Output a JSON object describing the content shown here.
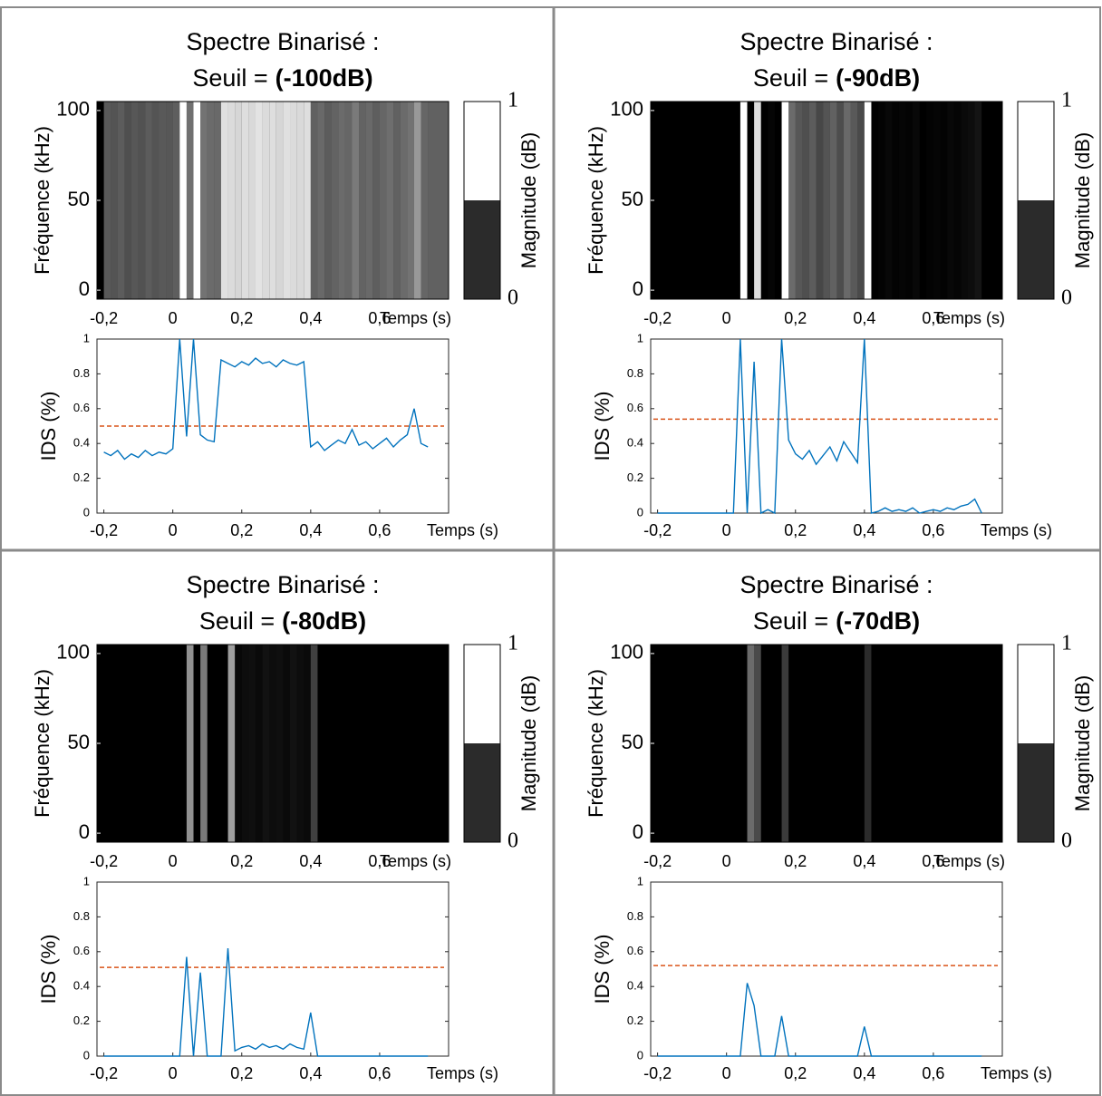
{
  "chart_data": [
    {
      "type": "binarized_spectrum",
      "title": "Spectre Binarisé :",
      "subtitle": "Seuil =",
      "threshold_label": "(-100dB)",
      "xlabel": "Temps (s)",
      "xlim": [
        -0.22,
        0.8
      ],
      "xticks": [
        {
          "value": -0.2,
          "label": "-0,2"
        },
        0,
        {
          "value": 0.2,
          "label": "0,2"
        },
        {
          "value": 0.4,
          "label": "0,4"
        },
        {
          "value": 0.6,
          "label": "0,6"
        }
      ],
      "spectrogram": {
        "ylabel": "Fréquence (kHz)",
        "ylim": [
          -5,
          105
        ],
        "yticks": [
          0,
          50,
          100
        ],
        "colorbar_label": "Magnitude (dB)",
        "colorbar_ticks": [
          0,
          1
        ]
      },
      "ids": {
        "ylabel": "IDS  (%)",
        "ylim": [
          0,
          1
        ],
        "yticks": [
          0,
          {
            "value": 0.2,
            "label": "0.2"
          },
          {
            "value": 0.4,
            "label": "0.4"
          },
          {
            "value": 0.6,
            "label": "0.6"
          },
          {
            "value": 0.8,
            "label": "0.8"
          },
          1
        ],
        "color": "#0072bd",
        "threshold": 0.5,
        "threshold_color": "#d95319"
      },
      "x": [
        -0.2,
        -0.18,
        -0.16,
        -0.14,
        -0.12,
        -0.1,
        -0.08,
        -0.06,
        -0.04,
        -0.02,
        0,
        0.02,
        0.04,
        0.06,
        0.08,
        0.1,
        0.12,
        0.14,
        0.16,
        0.18,
        0.2,
        0.22,
        0.24,
        0.26,
        0.28,
        0.3,
        0.32,
        0.34,
        0.36,
        0.38,
        0.4,
        0.42,
        0.44,
        0.46,
        0.48,
        0.5,
        0.52,
        0.54,
        0.56,
        0.58,
        0.6,
        0.62,
        0.64,
        0.66,
        0.68,
        0.7,
        0.72,
        0.74
      ],
      "values": [
        0.35,
        0.33,
        0.36,
        0.31,
        0.34,
        0.32,
        0.36,
        0.33,
        0.35,
        0.34,
        0.37,
        1.0,
        0.44,
        1.0,
        0.45,
        0.42,
        0.41,
        0.88,
        0.86,
        0.84,
        0.87,
        0.85,
        0.89,
        0.86,
        0.87,
        0.84,
        0.88,
        0.86,
        0.85,
        0.87,
        0.38,
        0.41,
        0.36,
        0.39,
        0.42,
        0.4,
        0.48,
        0.39,
        0.41,
        0.37,
        0.4,
        0.43,
        0.38,
        0.42,
        0.45,
        0.6,
        0.4,
        0.38
      ]
    },
    {
      "type": "binarized_spectrum",
      "title": "Spectre Binarisé :",
      "subtitle": "Seuil =",
      "threshold_label": "(-90dB)",
      "xlabel": "Temps (s)",
      "xlim": [
        -0.22,
        0.8
      ],
      "xticks": [
        {
          "value": -0.2,
          "label": "-0,2"
        },
        0,
        {
          "value": 0.2,
          "label": "0,2"
        },
        {
          "value": 0.4,
          "label": "0,4"
        },
        {
          "value": 0.6,
          "label": "0,6"
        }
      ],
      "spectrogram": {
        "ylabel": "Fréquence (kHz)",
        "ylim": [
          -5,
          105
        ],
        "yticks": [
          0,
          50,
          100
        ],
        "colorbar_label": "Magnitude (dB)",
        "colorbar_ticks": [
          0,
          1
        ]
      },
      "ids": {
        "ylabel": "IDS  (%)",
        "ylim": [
          0,
          1
        ],
        "yticks": [
          0,
          {
            "value": 0.2,
            "label": "0.2"
          },
          {
            "value": 0.4,
            "label": "0.4"
          },
          {
            "value": 0.6,
            "label": "0.6"
          },
          {
            "value": 0.8,
            "label": "0.8"
          },
          1
        ],
        "color": "#0072bd",
        "threshold": 0.54,
        "threshold_color": "#d95319"
      },
      "x": [
        -0.2,
        -0.18,
        -0.16,
        -0.14,
        -0.12,
        -0.1,
        -0.08,
        -0.06,
        -0.04,
        -0.02,
        0,
        0.02,
        0.04,
        0.06,
        0.08,
        0.1,
        0.12,
        0.14,
        0.16,
        0.18,
        0.2,
        0.22,
        0.24,
        0.26,
        0.28,
        0.3,
        0.32,
        0.34,
        0.36,
        0.38,
        0.4,
        0.42,
        0.44,
        0.46,
        0.48,
        0.5,
        0.52,
        0.54,
        0.56,
        0.58,
        0.6,
        0.62,
        0.64,
        0.66,
        0.68,
        0.7,
        0.72,
        0.74
      ],
      "values": [
        0,
        0,
        0,
        0,
        0,
        0,
        0,
        0,
        0,
        0,
        0,
        0,
        1.0,
        0,
        0.87,
        0,
        0.02,
        0,
        1.0,
        0.42,
        0.34,
        0.31,
        0.36,
        0.28,
        0.33,
        0.38,
        0.3,
        0.41,
        0.35,
        0.29,
        1.0,
        0,
        0.01,
        0.03,
        0.01,
        0.02,
        0.01,
        0.03,
        0,
        0.01,
        0.02,
        0.01,
        0.03,
        0.02,
        0.04,
        0.05,
        0.08,
        0
      ]
    },
    {
      "type": "binarized_spectrum",
      "title": "Spectre Binarisé :",
      "subtitle": "Seuil =",
      "threshold_label": "(-80dB)",
      "xlabel": "Temps (s)",
      "xlim": [
        -0.22,
        0.8
      ],
      "xticks": [
        {
          "value": -0.2,
          "label": "-0,2"
        },
        0,
        {
          "value": 0.2,
          "label": "0,2"
        },
        {
          "value": 0.4,
          "label": "0,4"
        },
        {
          "value": 0.6,
          "label": "0,6"
        }
      ],
      "spectrogram": {
        "ylabel": "Fréquence (kHz)",
        "ylim": [
          -5,
          105
        ],
        "yticks": [
          0,
          50,
          100
        ],
        "colorbar_label": "Magnitude (dB)",
        "colorbar_ticks": [
          0,
          1
        ]
      },
      "ids": {
        "ylabel": "IDS  (%)",
        "ylim": [
          0,
          1
        ],
        "yticks": [
          0,
          {
            "value": 0.2,
            "label": "0.2"
          },
          {
            "value": 0.4,
            "label": "0.4"
          },
          {
            "value": 0.6,
            "label": "0.6"
          },
          {
            "value": 0.8,
            "label": "0.8"
          },
          1
        ],
        "color": "#0072bd",
        "threshold": 0.51,
        "threshold_color": "#d95319"
      },
      "x": [
        -0.2,
        -0.18,
        -0.16,
        -0.14,
        -0.12,
        -0.1,
        -0.08,
        -0.06,
        -0.04,
        -0.02,
        0,
        0.02,
        0.04,
        0.06,
        0.08,
        0.1,
        0.12,
        0.14,
        0.16,
        0.18,
        0.2,
        0.22,
        0.24,
        0.26,
        0.28,
        0.3,
        0.32,
        0.34,
        0.36,
        0.38,
        0.4,
        0.42,
        0.44,
        0.46,
        0.48,
        0.5,
        0.52,
        0.54,
        0.56,
        0.58,
        0.6,
        0.62,
        0.64,
        0.66,
        0.68,
        0.7,
        0.72,
        0.74
      ],
      "values": [
        0,
        0,
        0,
        0,
        0,
        0,
        0,
        0,
        0,
        0,
        0,
        0,
        0.57,
        0,
        0.48,
        0,
        0,
        0,
        0.62,
        0.03,
        0.05,
        0.06,
        0.04,
        0.07,
        0.05,
        0.06,
        0.04,
        0.07,
        0.05,
        0.04,
        0.25,
        0,
        0,
        0,
        0,
        0,
        0,
        0,
        0,
        0,
        0,
        0,
        0,
        0,
        0,
        0,
        0,
        0
      ]
    },
    {
      "type": "binarized_spectrum",
      "title": "Spectre Binarisé :",
      "subtitle": "Seuil =",
      "threshold_label": "(-70dB)",
      "xlabel": "Temps (s)",
      "xlim": [
        -0.22,
        0.8
      ],
      "xticks": [
        {
          "value": -0.2,
          "label": "-0,2"
        },
        0,
        {
          "value": 0.2,
          "label": "0,2"
        },
        {
          "value": 0.4,
          "label": "0,4"
        },
        {
          "value": 0.6,
          "label": "0,6"
        }
      ],
      "spectrogram": {
        "ylabel": "Fréquence (kHz)",
        "ylim": [
          -5,
          105
        ],
        "yticks": [
          0,
          50,
          100
        ],
        "colorbar_label": "Magnitude (dB)",
        "colorbar_ticks": [
          0,
          1
        ]
      },
      "ids": {
        "ylabel": "IDS  (%)",
        "ylim": [
          0,
          1
        ],
        "yticks": [
          0,
          {
            "value": 0.2,
            "label": "0.2"
          },
          {
            "value": 0.4,
            "label": "0.4"
          },
          {
            "value": 0.6,
            "label": "0.6"
          },
          {
            "value": 0.8,
            "label": "0.8"
          },
          1
        ],
        "color": "#0072bd",
        "threshold": 0.52,
        "threshold_color": "#d95319"
      },
      "x": [
        -0.2,
        -0.18,
        -0.16,
        -0.14,
        -0.12,
        -0.1,
        -0.08,
        -0.06,
        -0.04,
        -0.02,
        0,
        0.02,
        0.04,
        0.06,
        0.08,
        0.1,
        0.12,
        0.14,
        0.16,
        0.18,
        0.2,
        0.22,
        0.24,
        0.26,
        0.28,
        0.3,
        0.32,
        0.34,
        0.36,
        0.38,
        0.4,
        0.42,
        0.44,
        0.46,
        0.48,
        0.5,
        0.52,
        0.54,
        0.56,
        0.58,
        0.6,
        0.62,
        0.64,
        0.66,
        0.68,
        0.7,
        0.72,
        0.74
      ],
      "values": [
        0,
        0,
        0,
        0,
        0,
        0,
        0,
        0,
        0,
        0,
        0,
        0,
        0,
        0.42,
        0.29,
        0,
        0,
        0,
        0.23,
        0,
        0,
        0,
        0,
        0,
        0,
        0,
        0,
        0,
        0,
        0,
        0.17,
        0,
        0,
        0,
        0,
        0,
        0,
        0,
        0,
        0,
        0,
        0,
        0,
        0,
        0,
        0,
        0,
        0
      ]
    }
  ]
}
